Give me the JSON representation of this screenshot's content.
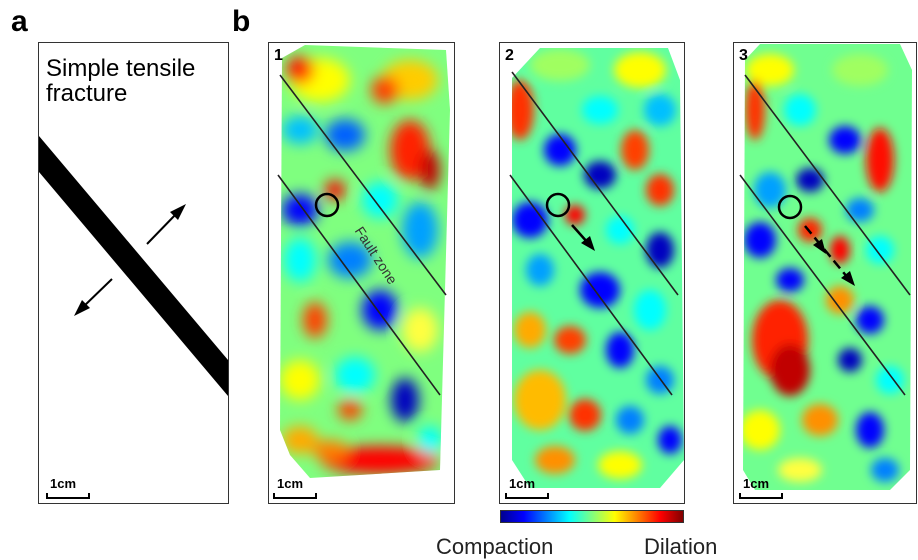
{
  "panel_a": {
    "letter": "a",
    "caption_line1": "Simple tensile",
    "caption_line2": "fracture",
    "scale_label": "1cm"
  },
  "panel_b": {
    "letter": "b",
    "samples": [
      {
        "number": "1",
        "scale_label": "1cm",
        "annotation": "Fault zone"
      },
      {
        "number": "2",
        "scale_label": "1cm"
      },
      {
        "number": "3",
        "scale_label": "1cm"
      }
    ]
  },
  "colorbar": {
    "left_label": "Compaction",
    "right_label": "Dilation",
    "colors": [
      "#00008f",
      "#0000ff",
      "#0080ff",
      "#00ffff",
      "#80ff80",
      "#ffff00",
      "#ff8000",
      "#ff0000",
      "#800000"
    ]
  }
}
